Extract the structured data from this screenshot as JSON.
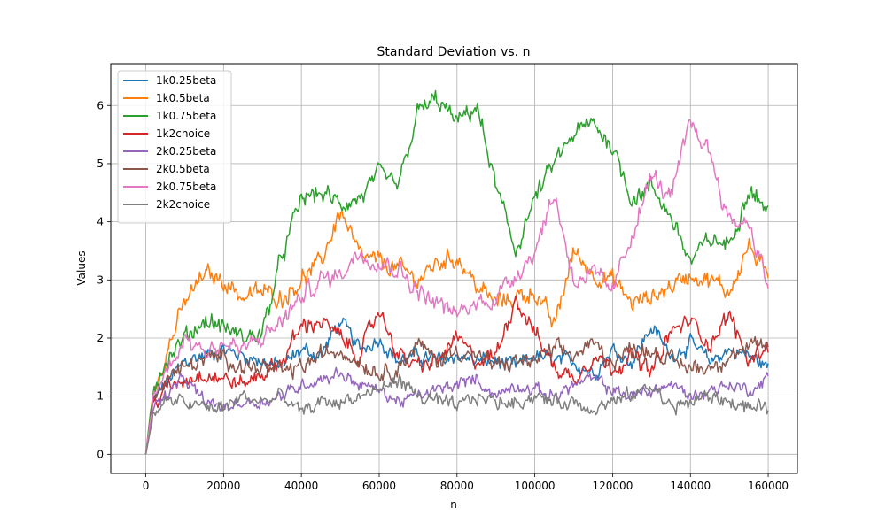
{
  "chart_data": {
    "type": "line",
    "title": "Standard Deviation vs. n",
    "xlabel": "n",
    "ylabel": "Values",
    "xlim": [
      -9000,
      167500
    ],
    "ylim": [
      -0.33,
      6.72
    ],
    "xticks": [
      0,
      20000,
      40000,
      60000,
      80000,
      100000,
      120000,
      140000,
      160000
    ],
    "xtick_labels": [
      "0",
      "20000",
      "40000",
      "60000",
      "80000",
      "100000",
      "120000",
      "140000",
      "160000"
    ],
    "yticks": [
      0,
      1,
      2,
      3,
      4,
      5,
      6
    ],
    "ytick_labels": [
      "0",
      "1",
      "2",
      "3",
      "4",
      "5",
      "6"
    ],
    "grid": true,
    "legend_position": "top-left",
    "x": [
      0,
      2000,
      5000,
      10000,
      15000,
      20000,
      25000,
      30000,
      35000,
      40000,
      45000,
      50000,
      55000,
      60000,
      65000,
      70000,
      75000,
      80000,
      85000,
      90000,
      95000,
      100000,
      105000,
      110000,
      115000,
      120000,
      125000,
      130000,
      135000,
      140000,
      145000,
      150000,
      155000,
      160000
    ],
    "series": [
      {
        "name": "1k0.25beta",
        "color": "#1f77b4",
        "values": [
          0.0,
          0.9,
          1.2,
          1.6,
          1.7,
          1.8,
          1.7,
          1.6,
          1.5,
          1.8,
          1.7,
          2.3,
          1.8,
          2.0,
          1.6,
          1.7,
          1.6,
          1.7,
          1.6,
          1.6,
          1.5,
          1.7,
          1.6,
          1.6,
          1.4,
          1.8,
          1.6,
          2.2,
          1.7,
          1.9,
          1.6,
          1.8,
          1.7,
          1.5
        ],
        "noise": 0.18
      },
      {
        "name": "1k0.5beta",
        "color": "#ff7f0e",
        "values": [
          0.0,
          1.1,
          1.7,
          2.6,
          3.1,
          3.0,
          2.7,
          2.8,
          2.7,
          3.0,
          3.3,
          4.2,
          3.4,
          3.3,
          3.2,
          3.0,
          3.3,
          3.4,
          2.9,
          2.6,
          2.7,
          2.8,
          2.2,
          3.5,
          3.1,
          3.0,
          2.6,
          2.7,
          2.9,
          3.1,
          3.0,
          2.8,
          3.6,
          3.0
        ],
        "noise": 0.22
      },
      {
        "name": "1k0.75beta",
        "color": "#2ca02c",
        "values": [
          0.0,
          1.2,
          1.6,
          2.0,
          2.3,
          2.2,
          2.0,
          2.1,
          3.4,
          4.4,
          4.5,
          4.3,
          4.4,
          4.8,
          4.6,
          5.9,
          6.1,
          5.7,
          6.0,
          4.6,
          3.5,
          4.4,
          5.0,
          5.5,
          5.7,
          5.3,
          4.4,
          4.6,
          4.1,
          3.3,
          3.7,
          3.6,
          4.6,
          4.2
        ],
        "noise": 0.22
      },
      {
        "name": "1k2choice",
        "color": "#d62728",
        "values": [
          0.0,
          0.9,
          1.1,
          1.3,
          1.4,
          1.3,
          1.2,
          1.4,
          1.6,
          2.2,
          2.3,
          2.0,
          1.7,
          2.5,
          1.7,
          1.5,
          1.6,
          2.0,
          1.6,
          1.7,
          2.7,
          2.1,
          1.5,
          1.3,
          1.7,
          1.5,
          1.7,
          1.4,
          2.1,
          2.3,
          1.9,
          2.4,
          1.6,
          1.9
        ],
        "noise": 0.2
      },
      {
        "name": "2k0.25beta",
        "color": "#9467bd",
        "values": [
          0.0,
          0.8,
          1.0,
          1.3,
          0.9,
          0.8,
          0.9,
          0.9,
          1.0,
          1.2,
          1.3,
          1.4,
          1.2,
          1.1,
          0.9,
          1.0,
          1.1,
          1.2,
          1.3,
          1.0,
          1.2,
          1.1,
          1.0,
          1.2,
          1.3,
          1.1,
          1.0,
          1.1,
          1.2,
          1.0,
          1.1,
          1.2,
          1.1,
          1.3
        ],
        "noise": 0.15
      },
      {
        "name": "2k0.5beta",
        "color": "#8c564b",
        "values": [
          0.0,
          1.0,
          1.3,
          1.5,
          1.6,
          1.7,
          1.5,
          1.5,
          1.4,
          1.5,
          1.7,
          1.8,
          1.6,
          1.4,
          1.5,
          1.9,
          1.6,
          1.8,
          1.7,
          1.5,
          1.6,
          1.6,
          1.8,
          1.7,
          1.9,
          1.6,
          1.8,
          1.8,
          1.6,
          1.5,
          1.5,
          1.7,
          1.8,
          1.9
        ],
        "noise": 0.2
      },
      {
        "name": "2k0.75beta",
        "color": "#e377c2",
        "values": [
          0.0,
          1.0,
          1.4,
          2.0,
          1.8,
          1.9,
          1.8,
          2.0,
          2.3,
          2.7,
          3.0,
          3.1,
          3.5,
          3.3,
          3.2,
          2.8,
          2.6,
          2.4,
          2.6,
          2.7,
          3.1,
          3.5,
          4.5,
          3.0,
          3.1,
          2.8,
          3.8,
          4.8,
          4.4,
          5.7,
          5.2,
          4.0,
          4.0,
          2.9
        ],
        "noise": 0.22
      },
      {
        "name": "2k2choice",
        "color": "#7f7f7f",
        "values": [
          0.0,
          0.7,
          0.9,
          0.9,
          0.8,
          0.8,
          1.0,
          0.9,
          1.0,
          0.7,
          0.9,
          0.9,
          1.0,
          1.1,
          1.3,
          1.0,
          0.9,
          0.8,
          1.0,
          0.9,
          0.9,
          1.0,
          0.9,
          0.9,
          0.8,
          0.9,
          1.0,
          1.2,
          0.8,
          0.9,
          1.0,
          0.9,
          0.8,
          0.8
        ],
        "noise": 0.17
      }
    ]
  }
}
